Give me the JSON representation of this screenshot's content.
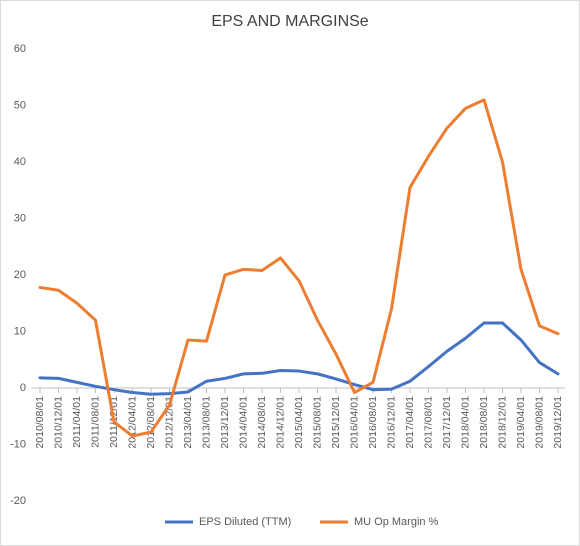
{
  "chart_data": {
    "type": "line",
    "title": "EPS AND MARGINSe",
    "categories": [
      "2010/08/01",
      "2010/12/01",
      "2011/04/01",
      "2011/08/01",
      "2011/12/01",
      "2012/04/01",
      "2012/08/01",
      "2012/12/01",
      "2013/04/01",
      "2013/08/01",
      "2013/12/01",
      "2014/04/01",
      "2014/08/01",
      "2014/12/01",
      "2015/04/01",
      "2015/08/01",
      "2015/12/01",
      "2016/04/01",
      "2016/08/01",
      "2016/12/01",
      "2017/04/01",
      "2017/08/01",
      "2017/12/01",
      "2018/04/01",
      "2018/08/01",
      "2018/12/01",
      "2019/04/01",
      "2019/08/01",
      "2019/12/01"
    ],
    "series": [
      {
        "name": "EPS Diluted (TTM)",
        "color": "#4472c4",
        "values": [
          1.8,
          1.7,
          1.0,
          0.3,
          -0.3,
          -0.8,
          -1.1,
          -1.0,
          -0.7,
          1.2,
          1.7,
          2.5,
          2.6,
          3.1,
          3.0,
          2.5,
          1.6,
          0.6,
          -0.3,
          -0.2,
          1.2,
          3.8,
          6.5,
          8.8,
          11.5,
          11.5,
          8.5,
          4.5,
          2.5
        ]
      },
      {
        "name": "MU Op Margin %",
        "color": "#ed7d31",
        "values": [
          17.8,
          17.3,
          15,
          12,
          -6,
          -8.5,
          -7.8,
          -3,
          8.5,
          8.3,
          20,
          21,
          20.8,
          23,
          19,
          12,
          6,
          -0.8,
          1,
          14,
          35.5,
          41,
          46,
          49.5,
          51,
          40,
          21,
          11,
          9.6
        ]
      }
    ],
    "ylim": [
      -20,
      60
    ],
    "yticks": [
      -20,
      -10,
      0,
      10,
      20,
      30,
      40,
      50,
      60
    ],
    "grid": false,
    "legend": "bottom"
  }
}
